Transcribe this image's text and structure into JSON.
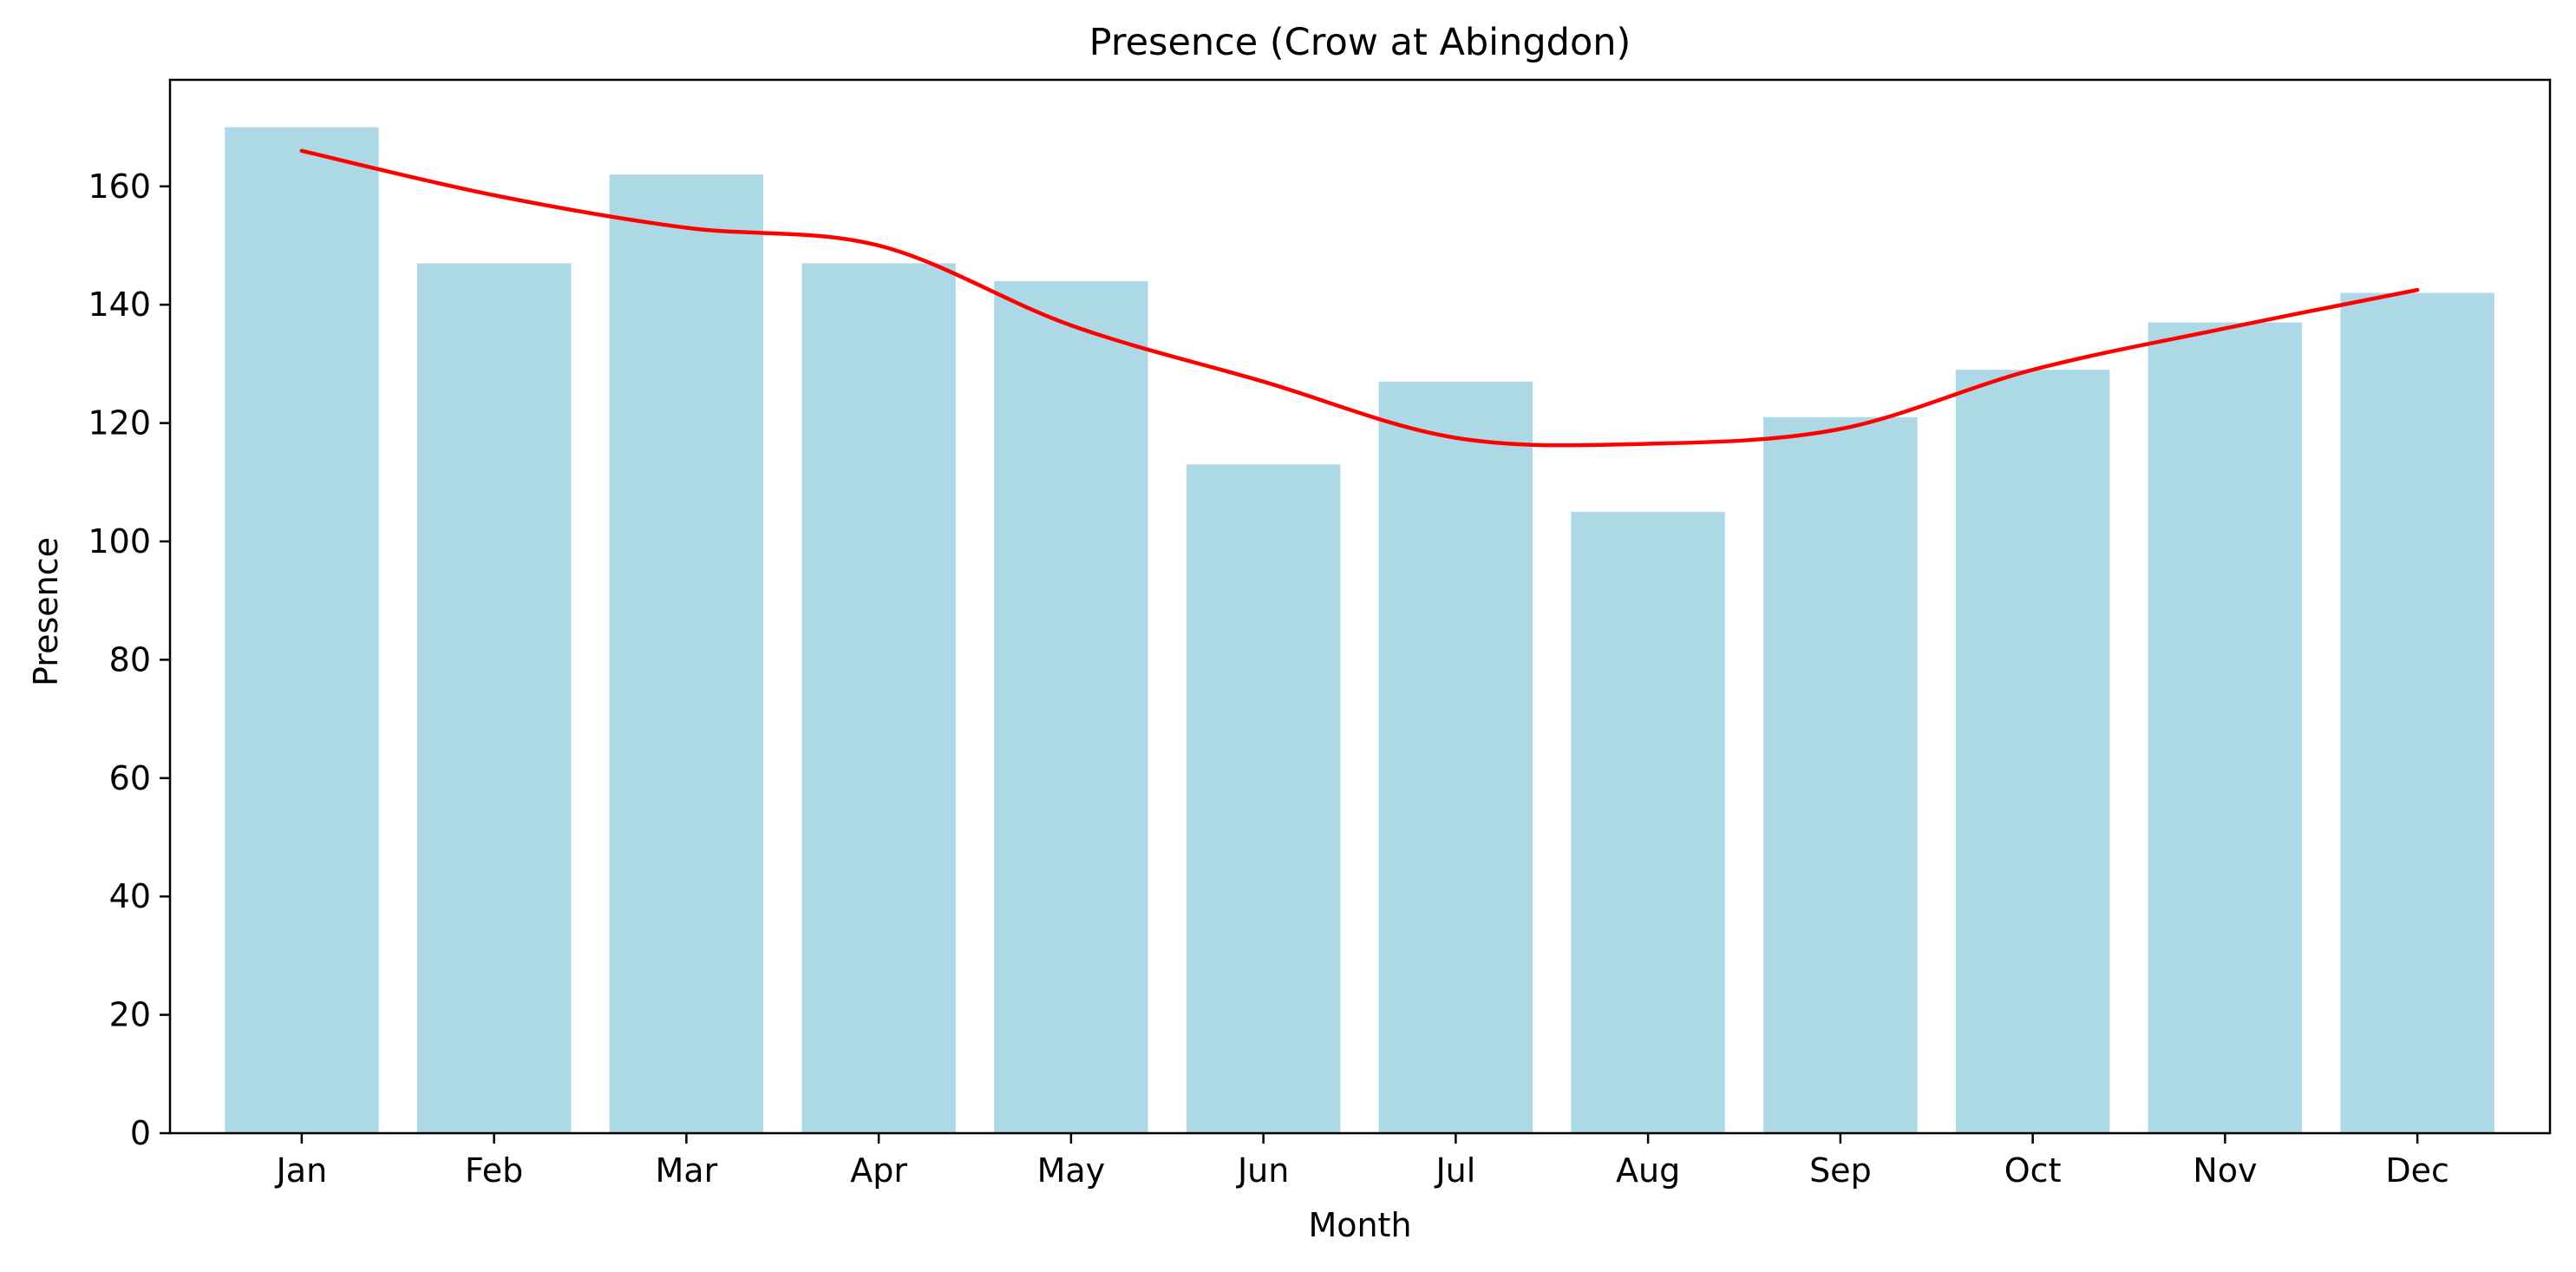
{
  "chart_data": {
    "type": "bar",
    "title": "Presence (Crow at Abingdon)",
    "xlabel": "Month",
    "ylabel": "Presence",
    "categories": [
      "Jan",
      "Feb",
      "Mar",
      "Apr",
      "May",
      "Jun",
      "Jul",
      "Aug",
      "Sep",
      "Oct",
      "Nov",
      "Dec"
    ],
    "values": [
      170,
      147,
      162,
      147,
      144,
      113,
      127,
      105,
      121,
      129,
      137,
      142
    ],
    "trend_line": [
      166,
      158.5,
      153,
      150,
      136.5,
      127,
      117.5,
      116.5,
      119,
      129,
      136,
      142.5
    ],
    "ylim": [
      0,
      178
    ],
    "yticks": [
      0,
      20,
      40,
      60,
      80,
      100,
      120,
      140,
      160
    ],
    "grid": false,
    "bar_color": "#add8e6",
    "line_color": "#ff0000"
  }
}
